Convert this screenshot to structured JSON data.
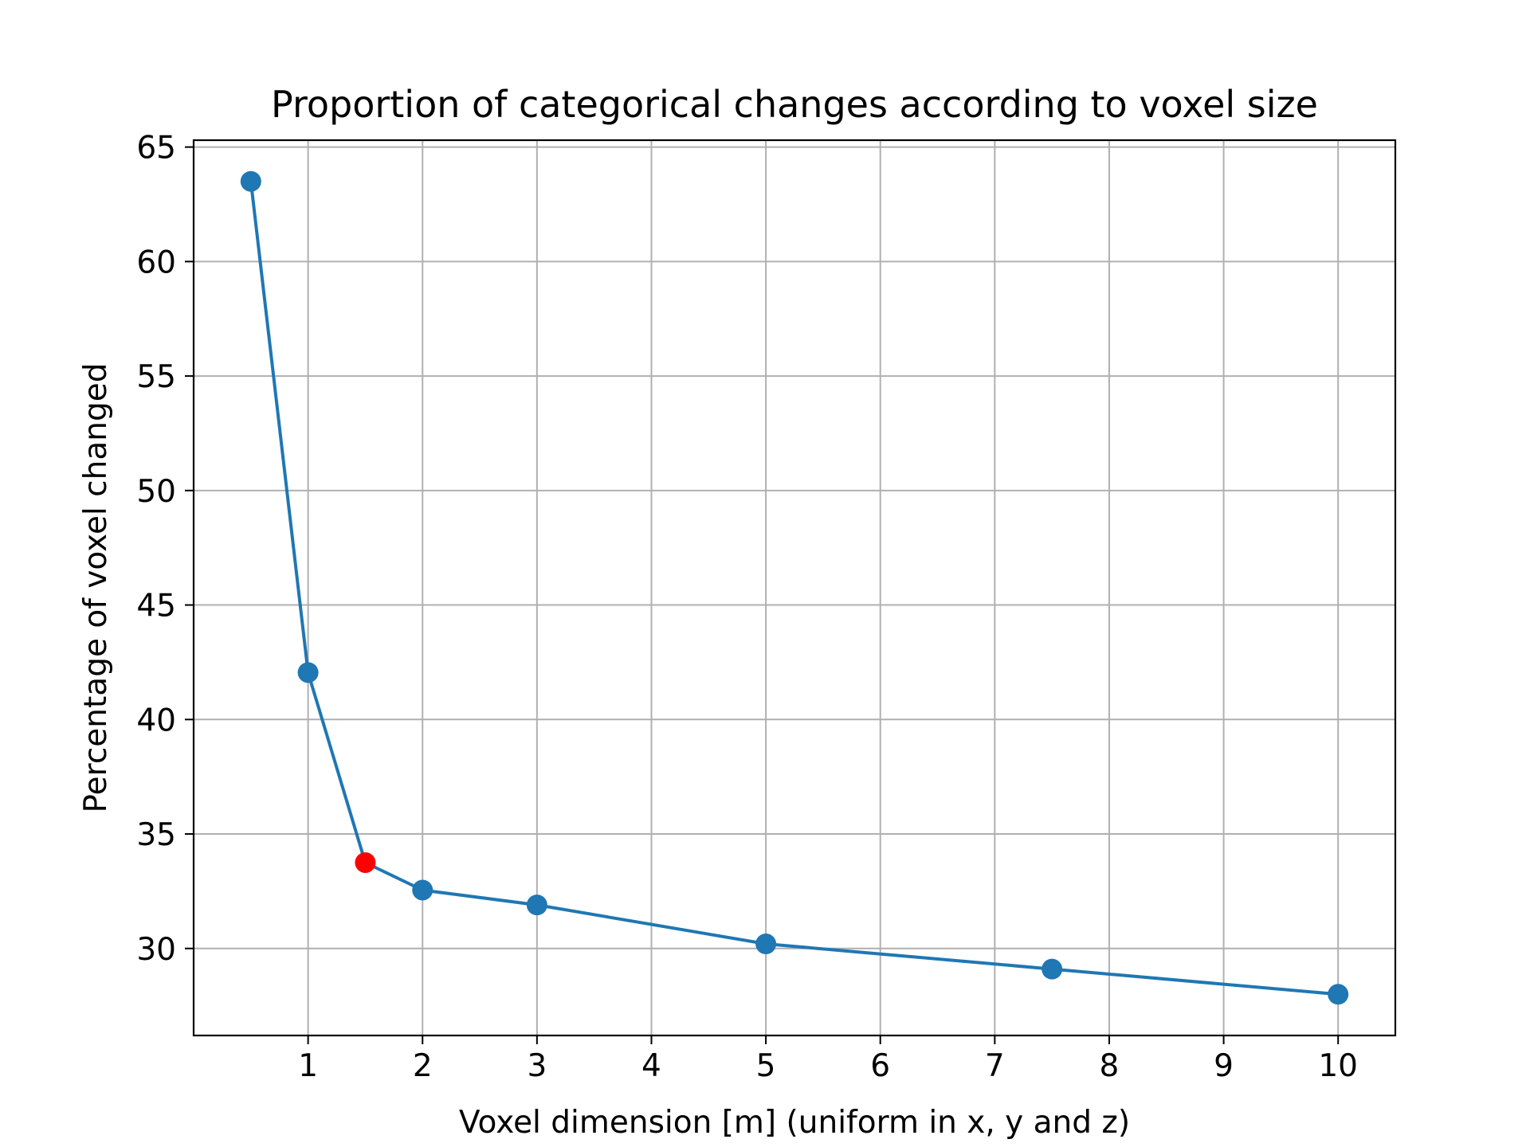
{
  "chart_data": {
    "type": "line",
    "title": "Proportion of categorical changes according to voxel size",
    "xlabel": "Voxel dimension [m] (uniform in x, y and z)",
    "ylabel": "Percentage of voxel changed",
    "xlim": [
      0,
      10.5
    ],
    "ylim": [
      26.2,
      65.3
    ],
    "xticks": [
      1,
      2,
      3,
      4,
      5,
      6,
      7,
      8,
      9,
      10
    ],
    "yticks": [
      30,
      35,
      40,
      45,
      50,
      55,
      60,
      65
    ],
    "grid": true,
    "series": [
      {
        "x": [
          0.5,
          1,
          1.5,
          2,
          3,
          5,
          7.5,
          10
        ],
        "y": [
          63.5,
          42.05,
          33.75,
          32.55,
          31.9,
          30.2,
          29.1,
          28.0
        ],
        "color": "#1f77b4"
      }
    ],
    "highlighted_point": {
      "x": 1.5,
      "y": 33.75,
      "color": "#ff0000"
    }
  }
}
